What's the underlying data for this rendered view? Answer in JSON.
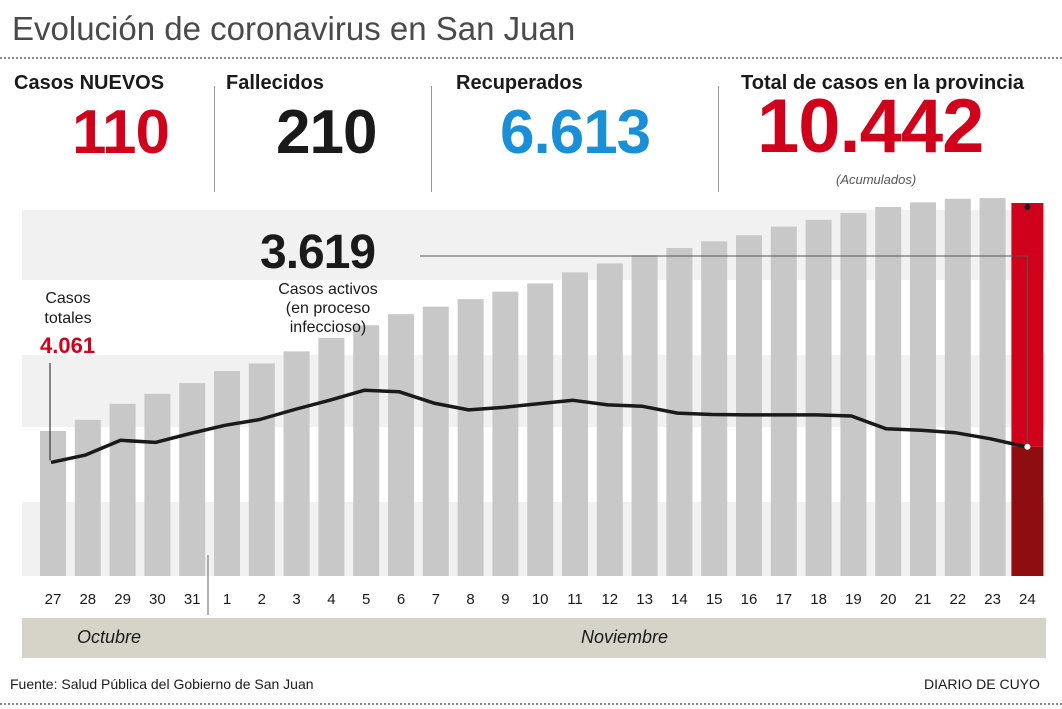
{
  "header": {
    "title": "Evolución de coronavirus en San Juan"
  },
  "stats": {
    "nuevos": {
      "label": "Casos NUEVOS",
      "value": "110",
      "color": "#d0021b"
    },
    "fallecidos": {
      "label": "Fallecidos",
      "value": "210",
      "color": "#1a1a1a"
    },
    "recuperados": {
      "label": "Recuperados",
      "value": "6.613",
      "color": "#1a8fd6"
    },
    "total": {
      "label": "Total de casos en la provincia",
      "value": "10.442",
      "note": "(Acumulados)",
      "color": "#d0021b"
    }
  },
  "chart_data": {
    "type": "bar",
    "categories": [
      "27",
      "28",
      "29",
      "30",
      "31",
      "1",
      "2",
      "3",
      "4",
      "5",
      "6",
      "7",
      "8",
      "9",
      "10",
      "11",
      "12",
      "13",
      "14",
      "15",
      "16",
      "17",
      "18",
      "19",
      "20",
      "21",
      "22",
      "23",
      "24"
    ],
    "ylim": [
      0,
      10442
    ],
    "series": [
      {
        "values": [
          4061,
          4370,
          4820,
          5100,
          5400,
          5740,
          5950,
          6290,
          6670,
          7020,
          7330,
          7540,
          7750,
          7960,
          8190,
          8500,
          8750,
          8980,
          9180,
          9370,
          9540,
          9780,
          9970,
          10160,
          10330,
          10460,
          10560,
          10580,
          10442
        ],
        "color": "#c8c8c8",
        "highlight_last_color": "#d0021b",
        "highlight_last_lower_color": "#8e0d10"
      },
      {
        "type": "line",
        "values": [
          3180,
          3390,
          3800,
          3740,
          3990,
          4220,
          4380,
          4660,
          4920,
          5200,
          5160,
          4840,
          4650,
          4720,
          4820,
          4920,
          4790,
          4750,
          4560,
          4520,
          4510,
          4510,
          4510,
          4480,
          4120,
          4080,
          4010,
          3840,
          3619
        ],
        "color": "#1a1a1a"
      }
    ],
    "annotations": {
      "totales_label": "Casos\ntotales",
      "totales_value": "4.061",
      "activos_value": "3.619",
      "activos_label": "Casos activos\n(en proceso\ninfeccioso)"
    },
    "months": [
      {
        "name": "Octubre"
      },
      {
        "name": "Noviembre"
      }
    ],
    "bands": true,
    "grid": false
  },
  "footer": {
    "source": "Fuente: Salud Pública del Gobierno de San Juan",
    "credit": "DIARIO DE CUYO"
  }
}
